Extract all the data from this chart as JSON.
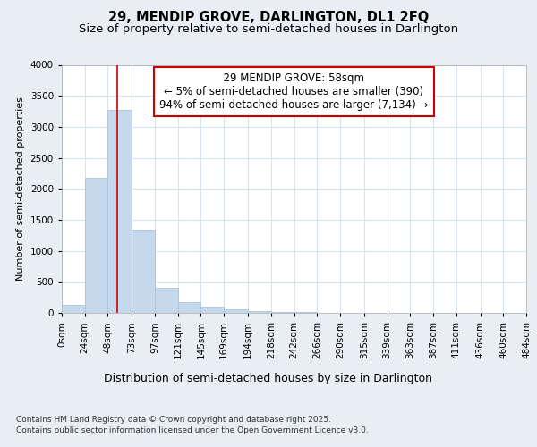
{
  "title_line1": "29, MENDIP GROVE, DARLINGTON, DL1 2FQ",
  "title_line2": "Size of property relative to semi-detached houses in Darlington",
  "xlabel": "Distribution of semi-detached houses by size in Darlington",
  "ylabel": "Number of semi-detached properties",
  "footer_line1": "Contains HM Land Registry data © Crown copyright and database right 2025.",
  "footer_line2": "Contains public sector information licensed under the Open Government Licence v3.0.",
  "annotation_title": "29 MENDIP GROVE: 58sqm",
  "annotation_line1": "← 5% of semi-detached houses are smaller (390)",
  "annotation_line2": "94% of semi-detached houses are larger (7,134) →",
  "property_line_x": 58,
  "bin_edges": [
    0,
    24,
    48,
    73,
    97,
    121,
    145,
    169,
    194,
    218,
    242,
    266,
    290,
    315,
    339,
    363,
    387,
    411,
    436,
    460,
    484
  ],
  "bin_labels": [
    "0sqm",
    "24sqm",
    "48sqm",
    "73sqm",
    "97sqm",
    "121sqm",
    "145sqm",
    "169sqm",
    "194sqm",
    "218sqm",
    "242sqm",
    "266sqm",
    "290sqm",
    "315sqm",
    "339sqm",
    "363sqm",
    "387sqm",
    "411sqm",
    "436sqm",
    "460sqm",
    "484sqm"
  ],
  "bar_heights": [
    130,
    2170,
    3270,
    1340,
    410,
    170,
    100,
    55,
    30,
    20,
    10,
    5,
    2,
    0,
    0,
    0,
    0,
    0,
    0,
    0
  ],
  "bar_color": "#c6d9ec",
  "bar_edge_color": "#a8c4dc",
  "vline_color": "#cc0000",
  "ylim": [
    0,
    4000
  ],
  "yticks": [
    0,
    500,
    1000,
    1500,
    2000,
    2500,
    3000,
    3500,
    4000
  ],
  "figure_bg_color": "#e8eef4",
  "plot_bg_color": "#ffffff",
  "grid_color": "#d8e4f0",
  "annotation_box_facecolor": "#ffffff",
  "annotation_box_edgecolor": "#cc0000",
  "title_fontsize": 10.5,
  "subtitle_fontsize": 9.5,
  "ylabel_fontsize": 8,
  "xlabel_fontsize": 9,
  "tick_fontsize": 7.5,
  "annotation_fontsize": 8.5,
  "footer_fontsize": 6.5
}
